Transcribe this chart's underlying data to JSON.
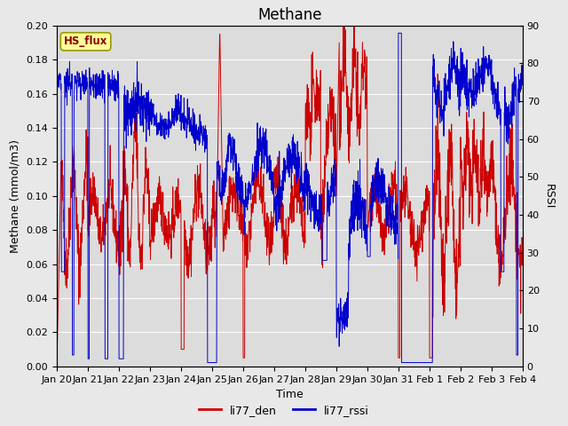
{
  "title": "Methane",
  "ylabel_left": "Methane (mmol/m3)",
  "ylabel_right": "RSSI",
  "xlabel": "Time",
  "xlim": [
    0,
    15
  ],
  "ylim_left": [
    0,
    0.2
  ],
  "ylim_right": [
    0,
    90
  ],
  "xtick_labels": [
    "Jan 20",
    "Jan 21",
    "Jan 22",
    "Jan 23",
    "Jan 24",
    "Jan 25",
    "Jan 26",
    "Jan 27",
    "Jan 28",
    "Jan 29",
    "Jan 30",
    "Jan 31",
    "Feb 1",
    "Feb 2",
    "Feb 3",
    "Feb 4"
  ],
  "xtick_positions": [
    0,
    1,
    2,
    3,
    4,
    5,
    6,
    7,
    8,
    9,
    10,
    11,
    12,
    13,
    14,
    15
  ],
  "yticks_left": [
    0.0,
    0.02,
    0.04,
    0.06,
    0.08,
    0.1,
    0.12,
    0.14,
    0.16,
    0.18,
    0.2
  ],
  "yticks_right": [
    0,
    10,
    20,
    30,
    40,
    50,
    60,
    70,
    80,
    90
  ],
  "legend_entries": [
    "li77_den",
    "li77_rssi"
  ],
  "legend_colors": [
    "#cc0000",
    "#0000cc"
  ],
  "annotation_text": "HS_flux",
  "annotation_color": "#8b0000",
  "annotation_bg": "#ffff99",
  "line_color_red": "#cc0000",
  "line_color_blue": "#0000cc",
  "background_color": "#e8e8e8",
  "plot_bg_color": "#dcdcdc",
  "grid_color": "#ffffff",
  "title_fontsize": 12,
  "axis_label_fontsize": 9,
  "tick_fontsize": 8,
  "linewidth": 0.7
}
